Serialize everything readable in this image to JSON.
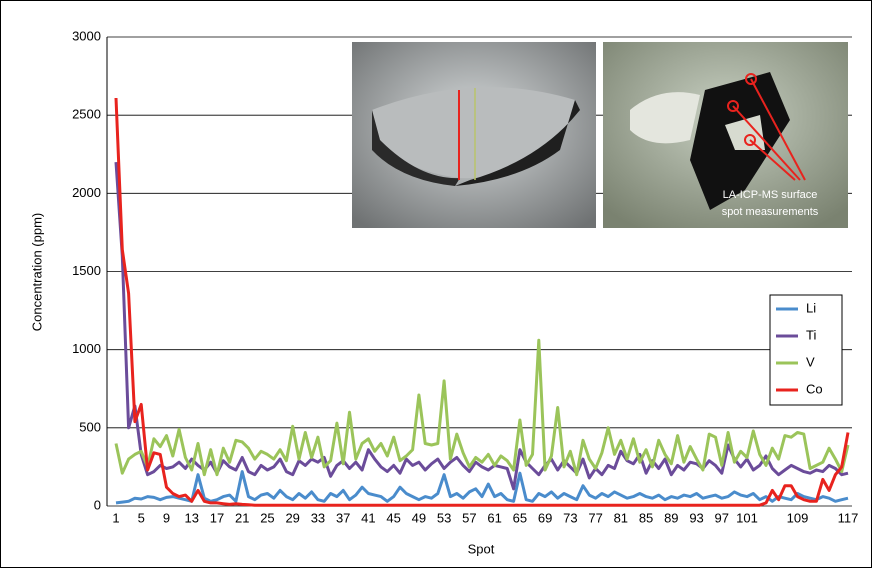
{
  "chart_data": {
    "type": "line",
    "y_label": "Concentration (ppm)",
    "x_label": "Spot",
    "annotation": [
      "LA-ICP-MS surface",
      "spot measurements"
    ],
    "categories": [
      1,
      null,
      null,
      null,
      5,
      null,
      null,
      null,
      9,
      null,
      null,
      null,
      13,
      null,
      null,
      null,
      17,
      null,
      null,
      null,
      21,
      null,
      null,
      null,
      25,
      null,
      null,
      null,
      29,
      null,
      null,
      null,
      33,
      null,
      null,
      null,
      37,
      null,
      null,
      null,
      41,
      null,
      null,
      null,
      45,
      null,
      null,
      null,
      49,
      null,
      null,
      null,
      53,
      null,
      null,
      null,
      57,
      null,
      null,
      null,
      61,
      null,
      null,
      null,
      65,
      null,
      null,
      null,
      69,
      null,
      null,
      null,
      73,
      null,
      null,
      null,
      77,
      null,
      null,
      null,
      81,
      null,
      null,
      null,
      85,
      null,
      null,
      null,
      89,
      null,
      null,
      null,
      93,
      null,
      null,
      null,
      97,
      null,
      null,
      null,
      101,
      null,
      null,
      null,
      null,
      null,
      null,
      null,
      109,
      null,
      null,
      null,
      null,
      null,
      null,
      null,
      117
    ],
    "ylim": [
      0,
      3000
    ],
    "yticks": [
      0,
      500,
      1000,
      1500,
      2000,
      2500,
      3000
    ],
    "grid": true,
    "legend": "right",
    "series": [
      {
        "name": "Li",
        "color": "#4a8ccc",
        "values": [
          20,
          25,
          30,
          50,
          45,
          60,
          55,
          40,
          55,
          60,
          50,
          40,
          30,
          200,
          50,
          30,
          40,
          60,
          70,
          30,
          220,
          60,
          40,
          70,
          80,
          50,
          100,
          60,
          40,
          80,
          50,
          90,
          40,
          30,
          80,
          60,
          100,
          40,
          70,
          120,
          80,
          70,
          60,
          30,
          60,
          120,
          80,
          60,
          40,
          60,
          50,
          80,
          200,
          60,
          80,
          50,
          90,
          110,
          60,
          140,
          60,
          80,
          40,
          30,
          210,
          40,
          30,
          80,
          60,
          90,
          50,
          80,
          60,
          40,
          130,
          70,
          50,
          80,
          60,
          90,
          70,
          50,
          60,
          80,
          60,
          50,
          70,
          40,
          60,
          50,
          70,
          60,
          80,
          50,
          60,
          70,
          50,
          60,
          90,
          70,
          60,
          80,
          40,
          60,
          30,
          60,
          50,
          40,
          80,
          60,
          50,
          40,
          60,
          50,
          30,
          40,
          50
        ]
      },
      {
        "name": "Ti",
        "color": "#6b4c9a",
        "values": [
          2200,
          1600,
          500,
          640,
          330,
          200,
          220,
          260,
          240,
          250,
          280,
          240,
          300,
          260,
          230,
          280,
          210,
          290,
          250,
          230,
          310,
          220,
          200,
          260,
          230,
          250,
          300,
          220,
          200,
          290,
          260,
          300,
          280,
          310,
          190,
          260,
          290,
          240,
          280,
          230,
          360,
          300,
          250,
          220,
          260,
          210,
          300,
          260,
          280,
          230,
          270,
          300,
          240,
          280,
          310,
          260,
          220,
          280,
          250,
          230,
          260,
          250,
          240,
          110,
          360,
          280,
          240,
          200,
          260,
          300,
          230,
          290,
          250,
          210,
          300,
          180,
          240,
          200,
          260,
          240,
          350,
          290,
          270,
          330,
          210,
          290,
          240,
          300,
          200,
          260,
          230,
          280,
          270,
          240,
          290,
          260,
          210,
          390,
          300,
          250,
          300,
          230,
          260,
          320,
          240,
          200,
          230,
          260,
          240,
          220,
          210,
          230,
          220,
          260,
          240,
          200,
          210
        ]
      },
      {
        "name": "V",
        "color": "#9bc45a",
        "values": [
          400,
          210,
          300,
          330,
          350,
          250,
          430,
          380,
          450,
          320,
          490,
          310,
          230,
          400,
          200,
          360,
          200,
          370,
          280,
          420,
          410,
          370,
          300,
          350,
          330,
          300,
          360,
          290,
          510,
          300,
          470,
          310,
          440,
          250,
          290,
          530,
          270,
          600,
          300,
          400,
          430,
          350,
          400,
          320,
          440,
          290,
          320,
          360,
          710,
          400,
          390,
          400,
          800,
          300,
          460,
          340,
          250,
          310,
          280,
          330,
          260,
          320,
          290,
          230,
          550,
          260,
          330,
          1060,
          230,
          320,
          630,
          250,
          350,
          200,
          420,
          300,
          240,
          340,
          500,
          330,
          420,
          300,
          430,
          280,
          360,
          250,
          420,
          330,
          270,
          450,
          280,
          380,
          300,
          230,
          460,
          440,
          260,
          470,
          280,
          350,
          310,
          480,
          330,
          260,
          370,
          300,
          450,
          440,
          470,
          460,
          240,
          260,
          280,
          370,
          300,
          220,
          390
        ]
      },
      {
        "name": "Co",
        "color": "#e8231e",
        "values": [
          2610,
          1640,
          1360,
          540,
          650,
          230,
          340,
          330,
          120,
          80,
          60,
          70,
          30,
          100,
          30,
          20,
          20,
          15,
          10,
          15,
          10,
          8,
          5,
          5,
          5,
          5,
          5,
          5,
          5,
          5,
          5,
          5,
          5,
          5,
          5,
          5,
          5,
          5,
          5,
          5,
          5,
          5,
          5,
          5,
          5,
          5,
          5,
          5,
          5,
          5,
          5,
          5,
          5,
          5,
          5,
          5,
          5,
          5,
          5,
          5,
          5,
          5,
          5,
          5,
          5,
          5,
          5,
          5,
          5,
          5,
          5,
          5,
          5,
          5,
          5,
          5,
          5,
          5,
          5,
          5,
          5,
          5,
          5,
          5,
          5,
          5,
          5,
          5,
          5,
          5,
          5,
          5,
          5,
          5,
          5,
          5,
          5,
          5,
          5,
          5,
          5,
          5,
          5,
          20,
          100,
          40,
          130,
          130,
          60,
          40,
          30,
          30,
          170,
          100,
          200,
          250,
          470
        ]
      }
    ]
  }
}
